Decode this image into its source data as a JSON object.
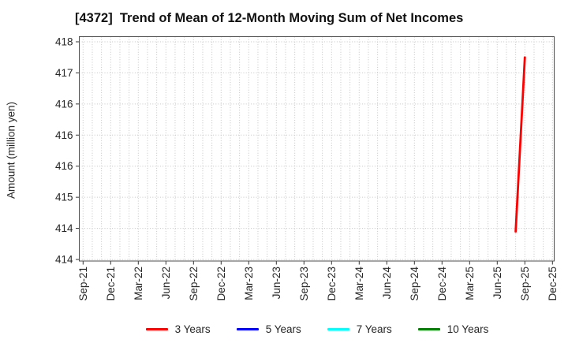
{
  "title": "[4372]  Trend of Mean of 12-Month Moving Sum of Net Incomes",
  "y_axis_label": "Amount (million yen)",
  "chart_data": {
    "type": "line",
    "title": "[4372]  Trend of Mean of 12-Month Moving Sum of Net Incomes",
    "xlabel": "",
    "ylabel": "Amount (million yen)",
    "x_tick_labels": [
      "Sep-21",
      "Dec-21",
      "Mar-22",
      "Jun-22",
      "Sep-22",
      "Dec-22",
      "Mar-23",
      "Jun-23",
      "Sep-23",
      "Dec-23",
      "Mar-24",
      "Jun-24",
      "Sep-24",
      "Dec-24",
      "Mar-25",
      "Jun-25",
      "Sep-25",
      "Dec-25"
    ],
    "x_minor_grid": "monthly",
    "grid_style": "dotted",
    "y_tick_values": [
      417.5,
      417.0,
      416.5,
      416.0,
      415.5,
      415.0,
      414.5,
      414.0
    ],
    "y_tick_display": [
      "418",
      "417",
      "416",
      "416",
      "416",
      "415",
      "414",
      "414"
    ],
    "ylim": [
      413.96,
      417.59
    ],
    "legend_position": "bottom-center",
    "series": [
      {
        "name": "3 Years",
        "color": "#ff0000",
        "points": [
          {
            "month": "Aug-25",
            "value": 414.45
          },
          {
            "month": "Sep-25",
            "value": 417.25
          }
        ]
      },
      {
        "name": "5 Years",
        "color": "#0000ff",
        "points": []
      },
      {
        "name": "7 Years",
        "color": "#00ffff",
        "points": []
      },
      {
        "name": "10 Years",
        "color": "#008000",
        "points": []
      }
    ]
  }
}
